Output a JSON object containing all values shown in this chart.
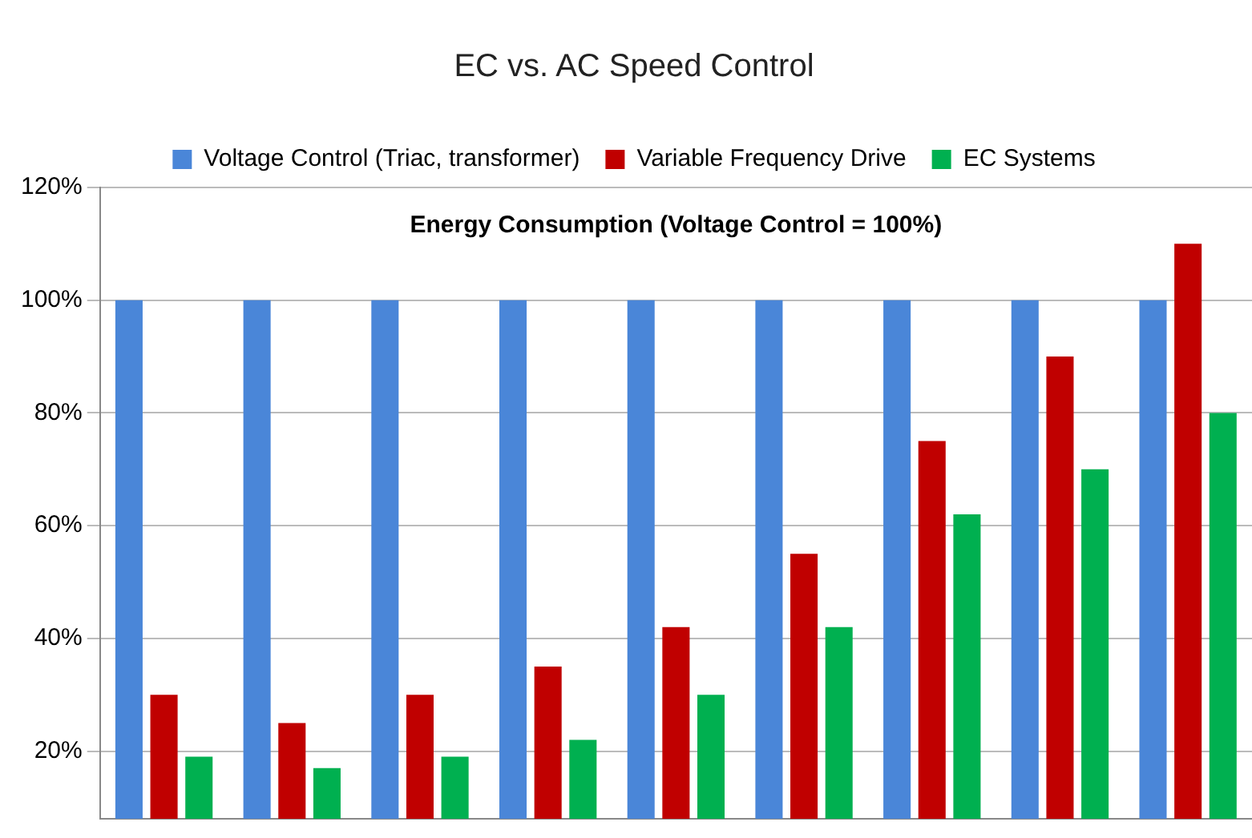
{
  "chart_data": {
    "type": "bar",
    "title": "EC vs. AC Speed Control",
    "subtitle": "Energy Consumption (Voltage Control = 100%)",
    "categories": [
      null,
      null,
      null,
      null,
      null,
      null,
      null,
      null,
      null
    ],
    "series": [
      {
        "name": "Voltage Control (Triac, transformer)",
        "color": "#4a86d8",
        "values": [
          100,
          100,
          100,
          100,
          100,
          100,
          100,
          100,
          100
        ]
      },
      {
        "name": "Variable Frequency Drive",
        "color": "#c00000",
        "values": [
          30,
          25,
          30,
          35,
          42,
          55,
          75,
          90,
          110
        ]
      },
      {
        "name": "EC Systems",
        "color": "#00b050",
        "values": [
          19,
          17,
          19,
          22,
          30,
          42,
          62,
          70,
          80
        ]
      }
    ],
    "ylim": [
      8,
      120
    ],
    "yticks": [
      {
        "value": 20,
        "label": "20%"
      },
      {
        "value": 40,
        "label": "40%"
      },
      {
        "value": 60,
        "label": "60%"
      },
      {
        "value": 80,
        "label": "80%"
      },
      {
        "value": 100,
        "label": "100%"
      },
      {
        "value": 120,
        "label": "120%"
      }
    ],
    "grid": "y",
    "legend": "top"
  }
}
